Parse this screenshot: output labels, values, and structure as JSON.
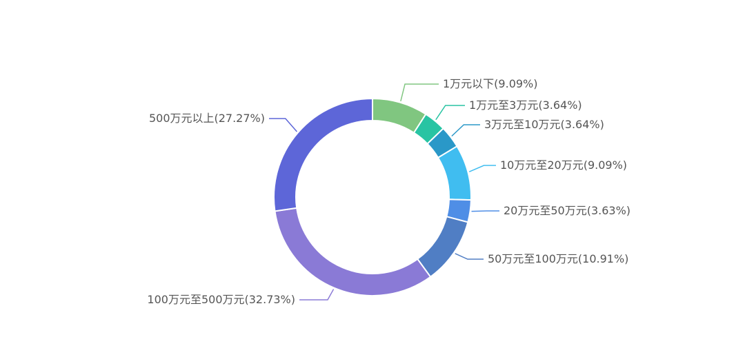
{
  "chart_data": {
    "type": "pie",
    "variant": "donut",
    "start_angle_deg": 0,
    "direction": "clockwise",
    "slices": [
      {
        "label": "1万元以下(9.09%)",
        "category": "1万元以下",
        "value": 9.09,
        "color": "#80c680"
      },
      {
        "label": "1万元至3万元(3.64%)",
        "category": "1万元至3万元",
        "value": 3.64,
        "color": "#28c4a3"
      },
      {
        "label": "3万元至10万元(3.64%)",
        "category": "3万元至10万元",
        "value": 3.64,
        "color": "#2a98c8"
      },
      {
        "label": "10万元至20万元(9.09%)",
        "category": "10万元至20万元",
        "value": 9.09,
        "color": "#40bdf0"
      },
      {
        "label": "20万元至50万元(3.63%)",
        "category": "20万元至50万元",
        "value": 3.63,
        "color": "#4f8ee6"
      },
      {
        "label": "50万元至100万元(10.91%)",
        "category": "50万元至100万元",
        "value": 10.91,
        "color": "#507ec4"
      },
      {
        "label": "100万元至500万元(32.73%)",
        "category": "100万元至500万元",
        "value": 32.73,
        "color": "#8a7ad6"
      },
      {
        "label": "500万元以上(27.27%)",
        "category": "500万元以上",
        "value": 27.27,
        "color": "#5d66d8"
      }
    ]
  }
}
